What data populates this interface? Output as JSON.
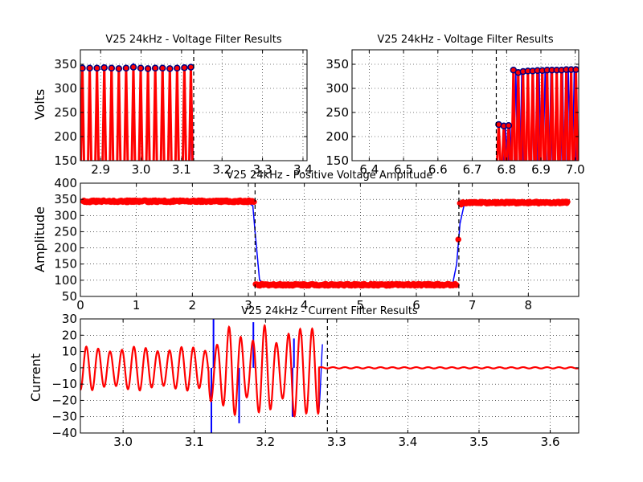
{
  "figure": {
    "background": "#ffffff"
  },
  "chart_data": [
    {
      "id": "vtop_left",
      "type": "line",
      "title": "V25 24kHz - Voltage Filter Results",
      "ylabel": "Volts",
      "xlim": [
        2.85,
        3.41
      ],
      "ylim": [
        150,
        380
      ],
      "xticks": [
        2.9,
        3.0,
        3.1,
        3.2,
        3.3,
        3.4
      ],
      "xtick_labels": [
        "2.9",
        "3.0",
        "3.1",
        "3.2",
        "3.3",
        "3.4"
      ],
      "yticks": [
        150,
        200,
        250,
        300,
        350
      ],
      "ytick_labels": [
        "150",
        "200",
        "250",
        "300",
        "350"
      ],
      "grid": true,
      "vlines": [
        3.13
      ],
      "series": [
        {
          "role": "raw",
          "color": "#0000ff",
          "kind": "pulses",
          "x": [
            2.855,
            2.873,
            2.891,
            2.909,
            2.927,
            2.945,
            2.963,
            2.981,
            2.999,
            3.017,
            3.035,
            3.053,
            3.071,
            3.089,
            3.107,
            3.125
          ],
          "y": [
            345,
            344,
            345,
            346,
            345,
            344,
            345,
            352,
            345,
            344,
            346,
            345,
            344,
            345,
            346,
            296
          ]
        },
        {
          "role": "filtered",
          "color": "#ff0000",
          "kind": "pulses",
          "x": [
            2.855,
            2.873,
            2.891,
            2.909,
            2.927,
            2.945,
            2.963,
            2.981,
            2.999,
            3.017,
            3.035,
            3.053,
            3.071,
            3.089,
            3.107,
            3.123
          ],
          "y": [
            342,
            342,
            342,
            343,
            342,
            341,
            342,
            344,
            342,
            341,
            342,
            342,
            341,
            342,
            343,
            344
          ]
        },
        {
          "role": "peaks",
          "color": "#ff0000",
          "edge": "#000080",
          "kind": "markers",
          "x": [
            2.855,
            2.873,
            2.891,
            2.909,
            2.927,
            2.945,
            2.963,
            2.981,
            2.999,
            3.017,
            3.035,
            3.053,
            3.071,
            3.089,
            3.107,
            3.123
          ],
          "y": [
            342,
            342,
            342,
            343,
            342,
            341,
            342,
            344,
            342,
            341,
            342,
            342,
            341,
            342,
            343,
            344
          ]
        }
      ]
    },
    {
      "id": "vtop_right",
      "type": "line",
      "title": "V25 24kHz - Voltage Filter Results",
      "ylabel": "",
      "xlim": [
        6.35,
        7.01
      ],
      "ylim": [
        150,
        380
      ],
      "xticks": [
        6.4,
        6.5,
        6.6,
        6.7,
        6.8,
        6.9,
        7.0
      ],
      "xtick_labels": [
        "6.4",
        "6.5",
        "6.6",
        "6.7",
        "6.8",
        "6.9",
        "7.0"
      ],
      "yticks": [
        150,
        200,
        250,
        300,
        350
      ],
      "ytick_labels": [
        "150",
        "200",
        "250",
        "300",
        "350"
      ],
      "grid": true,
      "vlines": [
        6.77
      ],
      "series": [
        {
          "role": "raw",
          "color": "#0000ff",
          "kind": "pulses",
          "x": [
            6.777,
            6.797,
            6.81,
            6.827,
            6.844,
            6.861,
            6.878,
            6.895,
            6.912,
            6.929,
            6.946,
            6.963,
            6.98,
            6.997
          ],
          "y": [
            228,
            222,
            225,
            340,
            330,
            333,
            335,
            336,
            337,
            338,
            338,
            339,
            339,
            340
          ]
        },
        {
          "role": "filtered",
          "color": "#ff0000",
          "kind": "pulses",
          "x": [
            6.777,
            6.792,
            6.806,
            6.82,
            6.834,
            6.848,
            6.862,
            6.876,
            6.89,
            6.904,
            6.918,
            6.932,
            6.946,
            6.96,
            6.974,
            6.988,
            7.002
          ],
          "y": [
            225,
            222,
            223,
            338,
            333,
            335,
            336,
            336,
            337,
            337,
            338,
            338,
            338,
            338,
            339,
            339,
            339
          ]
        },
        {
          "role": "peaks",
          "color": "#ff0000",
          "edge": "#000080",
          "kind": "markers",
          "x": [
            6.777,
            6.792,
            6.806,
            6.82,
            6.834,
            6.848,
            6.862,
            6.876,
            6.89,
            6.904,
            6.918,
            6.932,
            6.946,
            6.96,
            6.974,
            6.988,
            7.002
          ],
          "y": [
            225,
            222,
            223,
            338,
            333,
            335,
            336,
            336,
            337,
            337,
            338,
            338,
            338,
            338,
            339,
            339,
            339
          ]
        }
      ]
    },
    {
      "id": "vamp",
      "type": "line",
      "title": "V25 24kHz - Positive Voltage Amplitude",
      "ylabel": "Amplitude",
      "xlim": [
        0,
        8.9
      ],
      "ylim": [
        50,
        400
      ],
      "xticks": [
        0,
        1,
        2,
        3,
        4,
        5,
        6,
        7,
        8
      ],
      "xtick_labels": [
        "0",
        "1",
        "2",
        "3",
        "4",
        "5",
        "6",
        "7",
        "8"
      ],
      "yticks": [
        50,
        100,
        150,
        200,
        250,
        300,
        350,
        400
      ],
      "ytick_labels": [
        "50",
        "100",
        "150",
        "200",
        "250",
        "300",
        "350",
        "400"
      ],
      "grid": true,
      "vlines": [
        3.12,
        6.76
      ],
      "series": [
        {
          "role": "amplitude",
          "color": "#0000ff",
          "kind": "line",
          "x": [
            0.05,
            2.5,
            3.0,
            3.08,
            3.12,
            3.2,
            3.3,
            3.5,
            5.0,
            6.0,
            6.55,
            6.65,
            6.72,
            6.78,
            6.85,
            7.0,
            8.7
          ],
          "y": [
            340,
            340,
            339,
            330,
            250,
            100,
            88,
            87,
            86,
            85,
            85,
            90,
            150,
            275,
            330,
            338,
            338
          ]
        },
        {
          "role": "peak-markers-high-1",
          "color": "#ff0000",
          "kind": "markers",
          "x_start": 0.05,
          "x_end": 3.07,
          "y_base": 344,
          "count": 240
        },
        {
          "role": "peak-markers-low",
          "color": "#ff0000",
          "kind": "markers",
          "x_start": 3.13,
          "x_end": 6.72,
          "y_base": 86,
          "count": 280
        },
        {
          "role": "peak-markers-high-2",
          "color": "#ff0000",
          "kind": "markers",
          "x_start": 6.83,
          "x_end": 8.7,
          "y_base": 340,
          "count": 150
        },
        {
          "role": "transition-markers",
          "color": "#ff0000",
          "kind": "markers",
          "x": [
            3.1,
            6.75,
            6.78,
            6.8
          ],
          "y": [
            342,
            226,
            338,
            334
          ]
        }
      ]
    },
    {
      "id": "current",
      "type": "line",
      "title": "V25 24kHz - Current Filter Results",
      "ylabel": "Current",
      "xlim": [
        2.94,
        3.64
      ],
      "ylim": [
        -40,
        30
      ],
      "xticks": [
        3.0,
        3.1,
        3.2,
        3.3,
        3.4,
        3.5,
        3.6
      ],
      "xtick_labels": [
        "3.0",
        "3.1",
        "3.2",
        "3.3",
        "3.4",
        "3.5",
        "3.6"
      ],
      "yticks": [
        -40,
        -30,
        -20,
        -10,
        0,
        10,
        20,
        30
      ],
      "ytick_labels": [
        "−40",
        "−30",
        "−20",
        "−10",
        "0",
        "10",
        "20",
        "30"
      ],
      "grid": true,
      "vlines": [
        3.287
      ],
      "series": [
        {
          "role": "raw",
          "color": "#0000ff",
          "kind": "oscillation",
          "x_start": 2.94,
          "x_end": 3.28,
          "period": 0.0167,
          "spikes": [
            [
              3.124,
              -40
            ],
            [
              3.127,
              30
            ],
            [
              3.163,
              -34
            ],
            [
              3.183,
              28
            ],
            [
              3.24,
              18
            ],
            [
              3.245,
              0
            ],
            [
              3.238,
              -30
            ]
          ]
        },
        {
          "role": "filtered",
          "color": "#ff0000",
          "kind": "oscillation",
          "x_start": 2.94,
          "x_end": 3.64,
          "period": 0.0167,
          "cutoff": 3.275
        }
      ]
    }
  ]
}
